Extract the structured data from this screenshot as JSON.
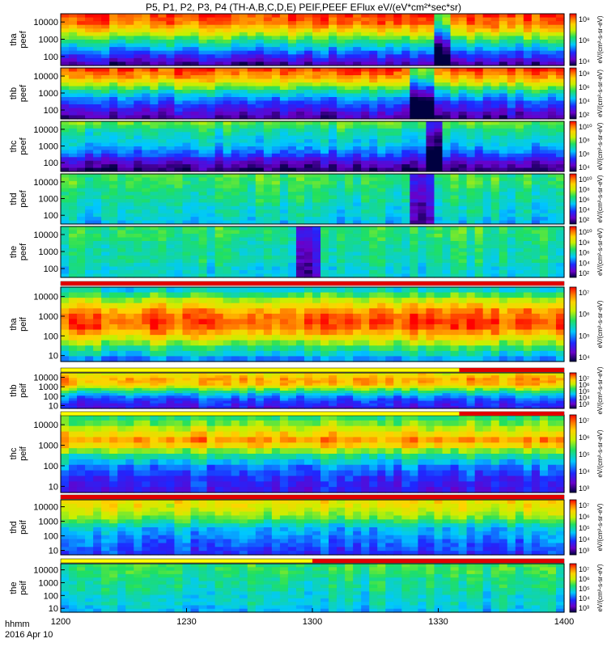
{
  "title": "P5, P1, P2, P3, P4 (TH-A,B,C,D,E) PEIF,PEEF EFlux eV/(eV*cm²*sec*sr)",
  "time_axis": {
    "ticks": [
      "1200",
      "1230",
      "1300",
      "1330",
      "1400"
    ],
    "label_line1": "hhmm",
    "label_line2": "2016 Apr 10"
  },
  "colors": {
    "low": "#2020ff",
    "high": "#ff0000",
    "flag_ok": "#ffff00",
    "flag_bad": "#e00000"
  },
  "chart_data": [
    {
      "type": "heatmap",
      "probe": "tha",
      "species": "peef",
      "ylabel": "tha\npeef",
      "yticks": [
        "10000",
        "1000",
        "100"
      ],
      "ylog": true,
      "ylim": [
        30,
        30000
      ],
      "cbar_ticks": [
        "10⁸",
        "10⁶",
        "10⁴"
      ],
      "cbar_label": "eV/(cm²-s-sr-eV)",
      "profile": [
        0.95,
        0.9,
        0.75,
        0.55,
        0.4,
        0.25,
        0.1
      ],
      "event_at": "1330"
    },
    {
      "type": "heatmap",
      "probe": "thb",
      "species": "peef",
      "ylabel": "thb\npeef",
      "yticks": [
        "10000",
        "1000",
        "100"
      ],
      "ylog": true,
      "ylim": [
        30,
        30000
      ],
      "cbar_ticks": [
        "10⁸",
        "10⁶",
        "10⁴",
        "10²"
      ],
      "cbar_label": "eV/(cm²-s-sr-eV)",
      "profile": [
        0.95,
        0.85,
        0.65,
        0.45,
        0.3,
        0.2,
        0.1
      ],
      "event_at": "1325"
    },
    {
      "type": "heatmap",
      "probe": "thc",
      "species": "peef",
      "ylabel": "thc\npeef",
      "yticks": [
        "10000",
        "1000",
        "100"
      ],
      "ylog": true,
      "ylim": [
        30,
        30000
      ],
      "cbar_ticks": [
        "10¹⁰",
        "10⁸",
        "10⁶",
        "10⁴"
      ],
      "cbar_label": "eV/(cm²-s-sr-eV)",
      "profile": [
        0.6,
        0.5,
        0.45,
        0.4,
        0.3,
        0.15,
        0.05
      ],
      "event_at": "1328"
    },
    {
      "type": "heatmap",
      "probe": "thd",
      "species": "peef",
      "ylabel": "thd\npeef",
      "yticks": [
        "10000",
        "1000",
        "100"
      ],
      "ylog": true,
      "ylim": [
        30,
        30000
      ],
      "cbar_ticks": [
        "10¹⁰",
        "10⁸",
        "10⁶",
        "10⁴",
        "10²"
      ],
      "cbar_label": "eV/(cm²-s-sr-eV)",
      "profile": [
        0.55,
        0.55,
        0.5,
        0.5,
        0.45,
        0.45,
        0.4
      ],
      "event_at": "1325"
    },
    {
      "type": "heatmap",
      "probe": "the",
      "species": "peef",
      "ylabel": "the\npeef",
      "yticks": [
        "10000",
        "1000",
        "100"
      ],
      "ylog": true,
      "ylim": [
        30,
        30000
      ],
      "cbar_ticks": [
        "10¹⁰",
        "10⁸",
        "10⁶",
        "10⁴",
        "10²"
      ],
      "cbar_label": "eV/(cm²-s-sr-eV)",
      "profile": [
        0.55,
        0.55,
        0.5,
        0.5,
        0.5,
        0.45,
        0.45
      ],
      "event_at": "1258"
    },
    {
      "type": "heatmap",
      "probe": "tha",
      "species": "peif",
      "ylabel": "tha\npeif",
      "yticks": [
        "10000",
        "1000",
        "100",
        "10"
      ],
      "ylog": true,
      "ylim": [
        5,
        30000
      ],
      "cbar_ticks": [
        "10⁷",
        "10⁶",
        "10⁵",
        "10⁴"
      ],
      "cbar_label": "eV/(cm²-s-sr-eV)",
      "profile": [
        0.45,
        0.7,
        0.9,
        0.95,
        0.8,
        0.55,
        0.35
      ],
      "event_at": "1330"
    },
    {
      "type": "heatmap",
      "probe": "thb",
      "species": "peif",
      "ylabel": "thb\npeif",
      "yticks": [
        "10000",
        "1000",
        "100",
        "10"
      ],
      "ylog": true,
      "ylim": [
        5,
        30000
      ],
      "cbar_ticks": [
        "10⁷",
        "10⁶",
        "10⁵",
        "10⁴",
        "10³"
      ],
      "cbar_label": "eV/(cm²-s-sr-eV)",
      "profile": [
        0.75,
        0.85,
        0.8,
        0.55,
        0.35,
        0.25,
        0.2
      ],
      "event_at": "1330"
    },
    {
      "type": "heatmap",
      "probe": "thc",
      "species": "peif",
      "ylabel": "thc\npeif",
      "yticks": [
        "10000",
        "1000",
        "100",
        "10"
      ],
      "ylog": true,
      "ylim": [
        5,
        30000
      ],
      "cbar_ticks": [
        "10⁷",
        "10⁶",
        "10⁵",
        "10⁴",
        "10³"
      ],
      "cbar_label": "eV/(cm²-s-sr-eV)",
      "profile": [
        0.55,
        0.7,
        0.9,
        0.55,
        0.35,
        0.25,
        0.2
      ],
      "event_at": "1330"
    },
    {
      "type": "heatmap",
      "probe": "thd",
      "species": "peif",
      "ylabel": "thd\npeif",
      "yticks": [
        "10000",
        "1000",
        "100",
        "10"
      ],
      "ylog": true,
      "ylim": [
        5,
        30000
      ],
      "cbar_ticks": [
        "10⁷",
        "10⁶",
        "10⁵",
        "10⁴",
        "10³"
      ],
      "cbar_label": "eV/(cm²-s-sr-eV)",
      "profile": [
        0.75,
        0.7,
        0.6,
        0.4,
        0.35,
        0.3,
        0.25
      ],
      "event_at": "1325"
    },
    {
      "type": "heatmap",
      "probe": "the",
      "species": "peif",
      "ylabel": "the\npeif",
      "yticks": [
        "10000",
        "1000",
        "100",
        "10"
      ],
      "ylog": true,
      "ylim": [
        5,
        30000
      ],
      "cbar_ticks": [
        "10⁷",
        "10⁶",
        "10⁵",
        "10⁴",
        "10³"
      ],
      "cbar_label": "eV/(cm²-s-sr-eV)",
      "profile": [
        0.55,
        0.55,
        0.5,
        0.5,
        0.45,
        0.45,
        0.4
      ],
      "event_at": "1300"
    }
  ],
  "flag_bars": [
    {
      "after_panel": 4,
      "ok_until": "1400",
      "bad_from": "1200"
    },
    {
      "after_panel": 5,
      "ok_until": "1335",
      "bad_from": "1335"
    },
    {
      "after_panel": 6,
      "ok_until": "1335",
      "bad_from": "1335"
    },
    {
      "after_panel": 7,
      "ok_until": "1200",
      "bad_from": "1200"
    },
    {
      "after_panel": 8,
      "ok_until": "1300",
      "bad_from": "1300"
    }
  ]
}
